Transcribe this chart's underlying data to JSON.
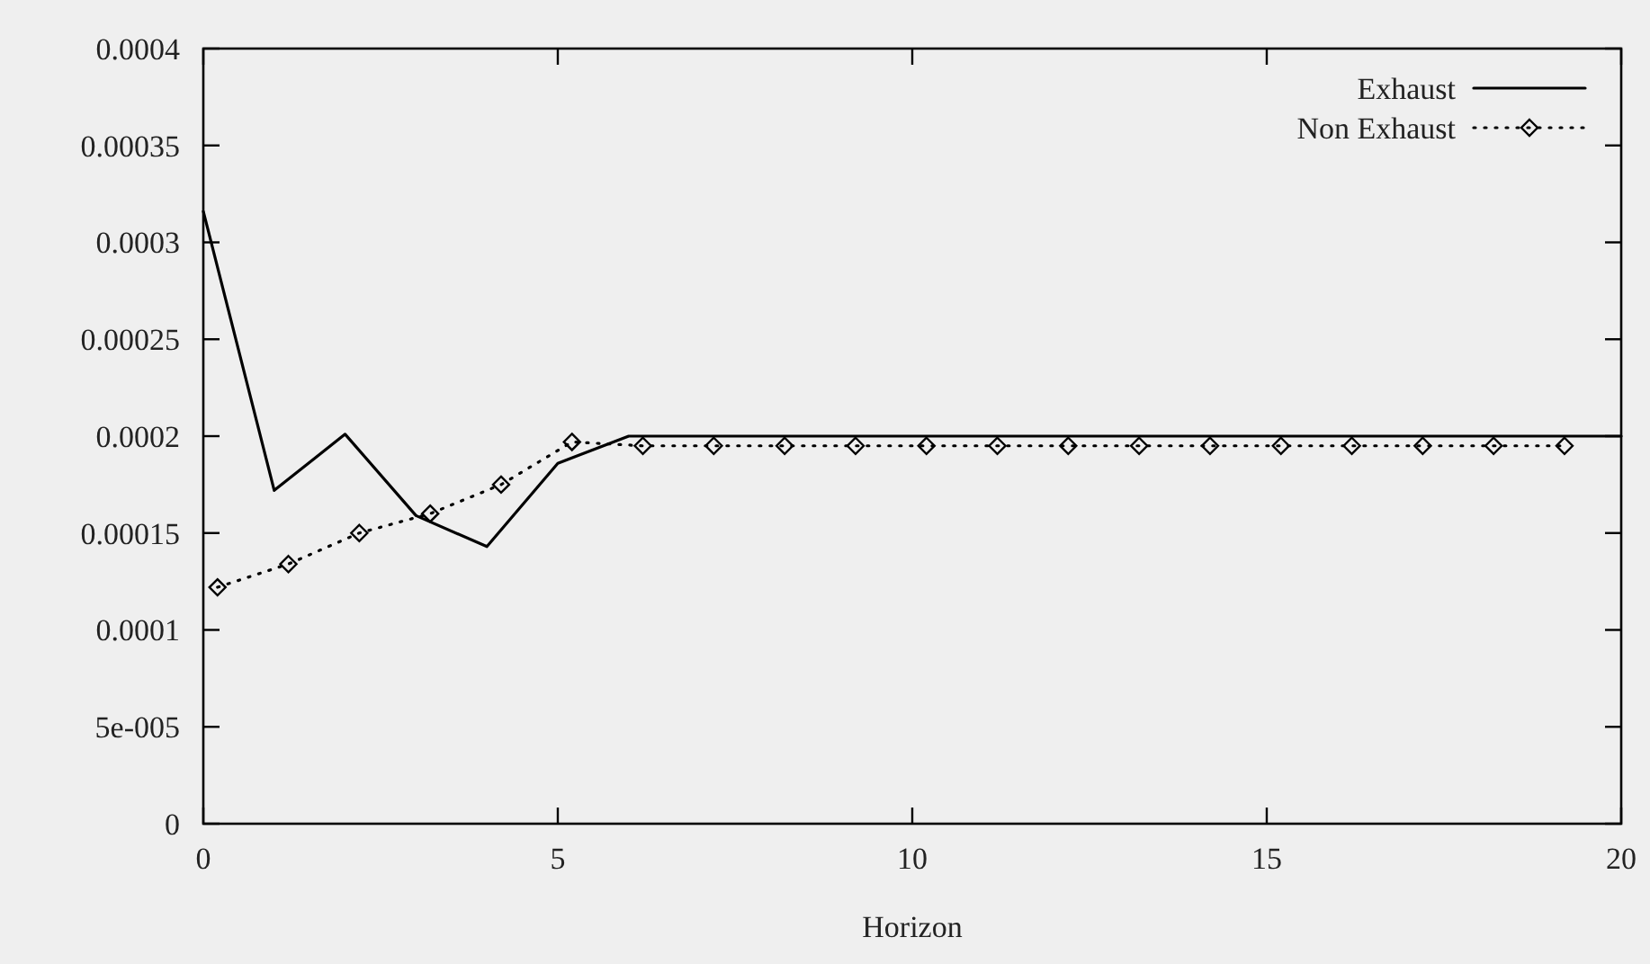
{
  "chart_data": {
    "type": "line",
    "xlabel": "Horizon",
    "xlim": [
      0,
      20
    ],
    "xticks": [
      0,
      5,
      10,
      15,
      20
    ],
    "ylim": [
      0,
      0.0004
    ],
    "yticks": [
      0,
      {
        "value": 5e-05,
        "label": "5e-005"
      },
      0.0001,
      0.00015,
      0.0002,
      0.00025,
      0.0003,
      0.00035,
      0.0004
    ],
    "grid": false,
    "legend": "top right",
    "series": [
      {
        "name": "Exhaust",
        "color": "#000000",
        "marker": "none",
        "line_style": "solid",
        "x": [
          0,
          1,
          2,
          3,
          4,
          5,
          6,
          7,
          8,
          9,
          10,
          11,
          12,
          13,
          14,
          15,
          16,
          17,
          18,
          19,
          20
        ],
        "values": [
          0.000316,
          0.000172,
          0.000201,
          0.000159,
          0.000143,
          0.000186,
          0.0002,
          0.0002,
          0.0002,
          0.0002,
          0.0002,
          0.0002,
          0.0002,
          0.0002,
          0.0002,
          0.0002,
          0.0002,
          0.0002,
          0.0002,
          0.0002,
          0.0002
        ]
      },
      {
        "name": "Non Exhaust",
        "color": "#000000",
        "marker": "diamond",
        "line_style": "dotted",
        "x": [
          0.2,
          1.2,
          2.2,
          3.2,
          4.2,
          5.2,
          6.2,
          7.2,
          8.2,
          9.2,
          10.2,
          11.2,
          12.2,
          13.2,
          14.2,
          15.2,
          16.2,
          17.2,
          18.2,
          19.2
        ],
        "values": [
          0.000122,
          0.000134,
          0.00015,
          0.00016,
          0.000175,
          0.000197,
          0.000195,
          0.000195,
          0.000195,
          0.000195,
          0.000195,
          0.000195,
          0.000195,
          0.000195,
          0.000195,
          0.000195,
          0.000195,
          0.000195,
          0.000195,
          0.000195
        ]
      }
    ]
  }
}
